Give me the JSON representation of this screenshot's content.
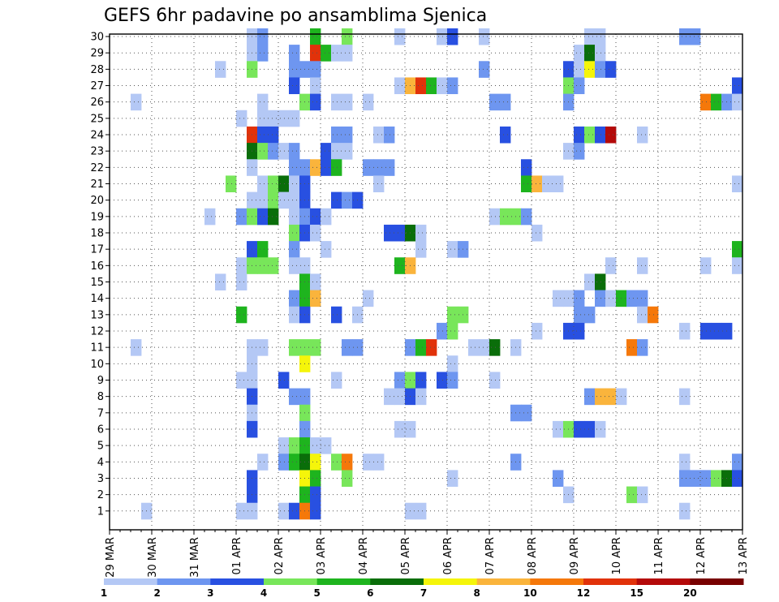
{
  "chart_data": {
    "type": "heatmap",
    "title": "GEFS 6hr padavine po ansamblima Sjenica",
    "x_tick_labels": [
      "29 MAR",
      "30 MAR",
      "31 MAR",
      "01 APR",
      "02 APR",
      "03 APR",
      "04 APR",
      "05 APR",
      "06 APR",
      "07 APR",
      "08 APR",
      "09 APR",
      "10 APR",
      "11 APR",
      "12 APR",
      "13 APR"
    ],
    "y_tick_labels": [
      "1",
      "2",
      "3",
      "4",
      "5",
      "6",
      "7",
      "8",
      "9",
      "10",
      "11",
      "12",
      "13",
      "14",
      "15",
      "16",
      "17",
      "18",
      "19",
      "20",
      "21",
      "22",
      "23",
      "24",
      "25",
      "26",
      "27",
      "28",
      "29",
      "30"
    ],
    "x_range": [
      0,
      60
    ],
    "y_range": [
      0,
      30
    ],
    "steps_per_day": 4,
    "grid": true,
    "legend_position": "bottom",
    "legend": {
      "bins": [
        {
          "color": "#b4c8f5"
        },
        {
          "color": "#6e96f0"
        },
        {
          "color": "#2850e1"
        },
        {
          "color": "#78e65a"
        },
        {
          "color": "#1eb41e"
        },
        {
          "color": "#0a6e0a"
        },
        {
          "color": "#f5f50a"
        },
        {
          "color": "#fab43c"
        },
        {
          "color": "#f5780a"
        },
        {
          "color": "#e1320a"
        },
        {
          "color": "#b40a0a"
        },
        {
          "color": "#780000"
        }
      ],
      "tick_labels": [
        "1",
        "2",
        "3",
        "4",
        "5",
        "6",
        "7",
        "8",
        "10",
        "12",
        "15",
        "20"
      ]
    },
    "cells": [
      [
        30,
        13,
        1
      ],
      [
        30,
        14,
        2
      ],
      [
        30,
        19,
        5
      ],
      [
        30,
        22,
        4
      ],
      [
        30,
        27,
        1
      ],
      [
        30,
        31,
        1
      ],
      [
        30,
        32,
        3
      ],
      [
        30,
        35,
        1
      ],
      [
        30,
        45,
        1
      ],
      [
        30,
        46,
        1
      ],
      [
        30,
        54,
        2
      ],
      [
        30,
        55,
        2
      ],
      [
        29,
        13,
        1
      ],
      [
        29,
        14,
        2
      ],
      [
        29,
        17,
        2
      ],
      [
        29,
        19,
        10
      ],
      [
        29,
        20,
        5
      ],
      [
        29,
        21,
        1
      ],
      [
        29,
        22,
        1
      ],
      [
        29,
        44,
        1
      ],
      [
        29,
        45,
        6
      ],
      [
        29,
        46,
        1
      ],
      [
        28,
        10,
        1
      ],
      [
        28,
        13,
        4
      ],
      [
        28,
        17,
        2
      ],
      [
        28,
        18,
        2
      ],
      [
        28,
        19,
        2
      ],
      [
        28,
        35,
        2
      ],
      [
        28,
        43,
        3
      ],
      [
        28,
        44,
        1
      ],
      [
        28,
        45,
        7
      ],
      [
        28,
        46,
        2
      ],
      [
        28,
        47,
        3
      ],
      [
        27,
        17,
        3
      ],
      [
        27,
        19,
        1
      ],
      [
        27,
        27,
        1
      ],
      [
        27,
        28,
        8
      ],
      [
        27,
        29,
        10
      ],
      [
        27,
        30,
        5
      ],
      [
        27,
        31,
        1
      ],
      [
        27,
        32,
        2
      ],
      [
        27,
        43,
        4
      ],
      [
        27,
        44,
        2
      ],
      [
        27,
        59,
        3
      ],
      [
        26,
        2,
        1
      ],
      [
        26,
        14,
        1
      ],
      [
        26,
        18,
        4
      ],
      [
        26,
        19,
        3
      ],
      [
        26,
        21,
        1
      ],
      [
        26,
        22,
        1
      ],
      [
        26,
        24,
        1
      ],
      [
        26,
        36,
        2
      ],
      [
        26,
        37,
        2
      ],
      [
        26,
        43,
        2
      ],
      [
        26,
        56,
        9
      ],
      [
        26,
        57,
        5
      ],
      [
        26,
        58,
        2
      ],
      [
        26,
        59,
        1
      ],
      [
        25,
        12,
        1
      ],
      [
        25,
        14,
        1
      ],
      [
        25,
        15,
        1
      ],
      [
        25,
        16,
        1
      ],
      [
        25,
        17,
        1
      ],
      [
        24,
        13,
        10
      ],
      [
        24,
        14,
        3
      ],
      [
        24,
        15,
        3
      ],
      [
        24,
        21,
        2
      ],
      [
        24,
        22,
        2
      ],
      [
        24,
        25,
        1
      ],
      [
        24,
        26,
        2
      ],
      [
        24,
        37,
        3
      ],
      [
        24,
        44,
        3
      ],
      [
        24,
        45,
        4
      ],
      [
        24,
        46,
        3
      ],
      [
        24,
        47,
        11
      ],
      [
        24,
        50,
        1
      ],
      [
        23,
        13,
        6
      ],
      [
        23,
        14,
        4
      ],
      [
        23,
        15,
        2
      ],
      [
        23,
        16,
        1
      ],
      [
        23,
        17,
        2
      ],
      [
        23,
        20,
        3
      ],
      [
        23,
        21,
        1
      ],
      [
        23,
        22,
        1
      ],
      [
        23,
        43,
        1
      ],
      [
        23,
        44,
        2
      ],
      [
        22,
        13,
        1
      ],
      [
        22,
        17,
        2
      ],
      [
        22,
        18,
        2
      ],
      [
        22,
        19,
        8
      ],
      [
        22,
        20,
        3
      ],
      [
        22,
        21,
        5
      ],
      [
        22,
        24,
        2
      ],
      [
        22,
        25,
        2
      ],
      [
        22,
        26,
        2
      ],
      [
        22,
        39,
        3
      ],
      [
        21,
        11,
        4
      ],
      [
        21,
        14,
        1
      ],
      [
        21,
        15,
        4
      ],
      [
        21,
        16,
        6
      ],
      [
        21,
        17,
        1
      ],
      [
        21,
        18,
        3
      ],
      [
        21,
        25,
        1
      ],
      [
        21,
        39,
        5
      ],
      [
        21,
        40,
        8
      ],
      [
        21,
        41,
        1
      ],
      [
        21,
        42,
        1
      ],
      [
        21,
        59,
        1
      ],
      [
        20,
        13,
        1
      ],
      [
        20,
        14,
        1
      ],
      [
        20,
        15,
        4
      ],
      [
        20,
        16,
        1
      ],
      [
        20,
        17,
        1
      ],
      [
        20,
        18,
        3
      ],
      [
        20,
        21,
        3
      ],
      [
        20,
        22,
        2
      ],
      [
        20,
        23,
        3
      ],
      [
        19,
        9,
        1
      ],
      [
        19,
        12,
        2
      ],
      [
        19,
        13,
        4
      ],
      [
        19,
        14,
        3
      ],
      [
        19,
        15,
        6
      ],
      [
        19,
        17,
        1
      ],
      [
        19,
        18,
        2
      ],
      [
        19,
        19,
        3
      ],
      [
        19,
        20,
        1
      ],
      [
        19,
        36,
        1
      ],
      [
        19,
        37,
        4
      ],
      [
        19,
        38,
        4
      ],
      [
        19,
        39,
        2
      ],
      [
        18,
        17,
        4
      ],
      [
        18,
        18,
        3
      ],
      [
        18,
        19,
        1
      ],
      [
        18,
        26,
        3
      ],
      [
        18,
        27,
        3
      ],
      [
        18,
        28,
        6
      ],
      [
        18,
        29,
        1
      ],
      [
        18,
        40,
        1
      ],
      [
        17,
        13,
        3
      ],
      [
        17,
        14,
        5
      ],
      [
        17,
        17,
        2
      ],
      [
        17,
        20,
        1
      ],
      [
        17,
        29,
        1
      ],
      [
        17,
        32,
        1
      ],
      [
        17,
        33,
        2
      ],
      [
        17,
        59,
        5
      ],
      [
        16,
        12,
        1
      ],
      [
        16,
        13,
        4
      ],
      [
        16,
        14,
        4
      ],
      [
        16,
        15,
        4
      ],
      [
        16,
        17,
        1
      ],
      [
        16,
        18,
        1
      ],
      [
        16,
        27,
        5
      ],
      [
        16,
        28,
        8
      ],
      [
        16,
        47,
        1
      ],
      [
        16,
        50,
        1
      ],
      [
        16,
        56,
        1
      ],
      [
        16,
        59,
        1
      ],
      [
        15,
        10,
        1
      ],
      [
        15,
        12,
        1
      ],
      [
        15,
        18,
        5
      ],
      [
        15,
        19,
        1
      ],
      [
        15,
        45,
        1
      ],
      [
        15,
        46,
        6
      ],
      [
        14,
        17,
        2
      ],
      [
        14,
        18,
        5
      ],
      [
        14,
        19,
        8
      ],
      [
        14,
        24,
        1
      ],
      [
        14,
        42,
        1
      ],
      [
        14,
        43,
        1
      ],
      [
        14,
        44,
        2
      ],
      [
        14,
        46,
        2
      ],
      [
        14,
        47,
        1
      ],
      [
        14,
        48,
        5
      ],
      [
        14,
        49,
        2
      ],
      [
        14,
        50,
        2
      ],
      [
        13,
        12,
        5
      ],
      [
        13,
        17,
        1
      ],
      [
        13,
        18,
        3
      ],
      [
        13,
        21,
        3
      ],
      [
        13,
        23,
        1
      ],
      [
        13,
        32,
        4
      ],
      [
        13,
        33,
        4
      ],
      [
        13,
        44,
        2
      ],
      [
        13,
        45,
        2
      ],
      [
        13,
        50,
        1
      ],
      [
        13,
        51,
        9
      ],
      [
        12,
        31,
        2
      ],
      [
        12,
        32,
        4
      ],
      [
        12,
        40,
        1
      ],
      [
        12,
        43,
        3
      ],
      [
        12,
        44,
        3
      ],
      [
        12,
        54,
        1
      ],
      [
        12,
        56,
        3
      ],
      [
        12,
        57,
        3
      ],
      [
        12,
        58,
        3
      ],
      [
        11,
        2,
        1
      ],
      [
        11,
        13,
        1
      ],
      [
        11,
        14,
        1
      ],
      [
        11,
        17,
        4
      ],
      [
        11,
        18,
        4
      ],
      [
        11,
        19,
        4
      ],
      [
        11,
        22,
        2
      ],
      [
        11,
        23,
        2
      ],
      [
        11,
        28,
        2
      ],
      [
        11,
        29,
        5
      ],
      [
        11,
        30,
        10
      ],
      [
        11,
        34,
        1
      ],
      [
        11,
        35,
        1
      ],
      [
        11,
        36,
        6
      ],
      [
        11,
        38,
        1
      ],
      [
        11,
        49,
        9
      ],
      [
        11,
        50,
        2
      ],
      [
        10,
        13,
        1
      ],
      [
        10,
        18,
        7
      ],
      [
        10,
        32,
        1
      ],
      [
        9,
        12,
        1
      ],
      [
        9,
        13,
        1
      ],
      [
        9,
        16,
        3
      ],
      [
        9,
        21,
        1
      ],
      [
        9,
        27,
        2
      ],
      [
        9,
        28,
        4
      ],
      [
        9,
        29,
        3
      ],
      [
        9,
        31,
        3
      ],
      [
        9,
        32,
        2
      ],
      [
        9,
        36,
        1
      ],
      [
        8,
        13,
        3
      ],
      [
        8,
        17,
        2
      ],
      [
        8,
        18,
        2
      ],
      [
        8,
        26,
        1
      ],
      [
        8,
        27,
        1
      ],
      [
        8,
        28,
        3
      ],
      [
        8,
        29,
        1
      ],
      [
        8,
        45,
        2
      ],
      [
        8,
        46,
        8
      ],
      [
        8,
        47,
        8
      ],
      [
        8,
        48,
        1
      ],
      [
        8,
        54,
        1
      ],
      [
        7,
        13,
        1
      ],
      [
        7,
        18,
        4
      ],
      [
        7,
        38,
        2
      ],
      [
        7,
        39,
        2
      ],
      [
        6,
        13,
        3
      ],
      [
        6,
        18,
        2
      ],
      [
        6,
        27,
        1
      ],
      [
        6,
        28,
        1
      ],
      [
        6,
        42,
        1
      ],
      [
        6,
        43,
        4
      ],
      [
        6,
        44,
        3
      ],
      [
        6,
        45,
        3
      ],
      [
        6,
        46,
        1
      ],
      [
        5,
        16,
        1
      ],
      [
        5,
        17,
        4
      ],
      [
        5,
        18,
        5
      ],
      [
        5,
        19,
        1
      ],
      [
        5,
        20,
        1
      ],
      [
        4,
        14,
        1
      ],
      [
        4,
        16,
        2
      ],
      [
        4,
        17,
        5
      ],
      [
        4,
        18,
        6
      ],
      [
        4,
        19,
        7
      ],
      [
        4,
        21,
        4
      ],
      [
        4,
        22,
        9
      ],
      [
        4,
        24,
        1
      ],
      [
        4,
        25,
        1
      ],
      [
        4,
        38,
        2
      ],
      [
        4,
        54,
        1
      ],
      [
        4,
        59,
        2
      ],
      [
        3,
        13,
        3
      ],
      [
        3,
        18,
        7
      ],
      [
        3,
        19,
        5
      ],
      [
        3,
        22,
        4
      ],
      [
        3,
        32,
        1
      ],
      [
        3,
        42,
        2
      ],
      [
        3,
        54,
        2
      ],
      [
        3,
        55,
        2
      ],
      [
        3,
        56,
        2
      ],
      [
        3,
        57,
        4
      ],
      [
        3,
        58,
        6
      ],
      [
        3,
        59,
        3
      ],
      [
        2,
        13,
        3
      ],
      [
        2,
        18,
        5
      ],
      [
        2,
        19,
        3
      ],
      [
        2,
        43,
        1
      ],
      [
        2,
        49,
        4
      ],
      [
        2,
        50,
        1
      ],
      [
        1,
        3,
        1
      ],
      [
        1,
        12,
        1
      ],
      [
        1,
        13,
        1
      ],
      [
        1,
        16,
        1
      ],
      [
        1,
        17,
        3
      ],
      [
        1,
        18,
        9
      ],
      [
        1,
        19,
        3
      ],
      [
        1,
        28,
        1
      ],
      [
        1,
        29,
        1
      ],
      [
        1,
        54,
        1
      ]
    ]
  }
}
